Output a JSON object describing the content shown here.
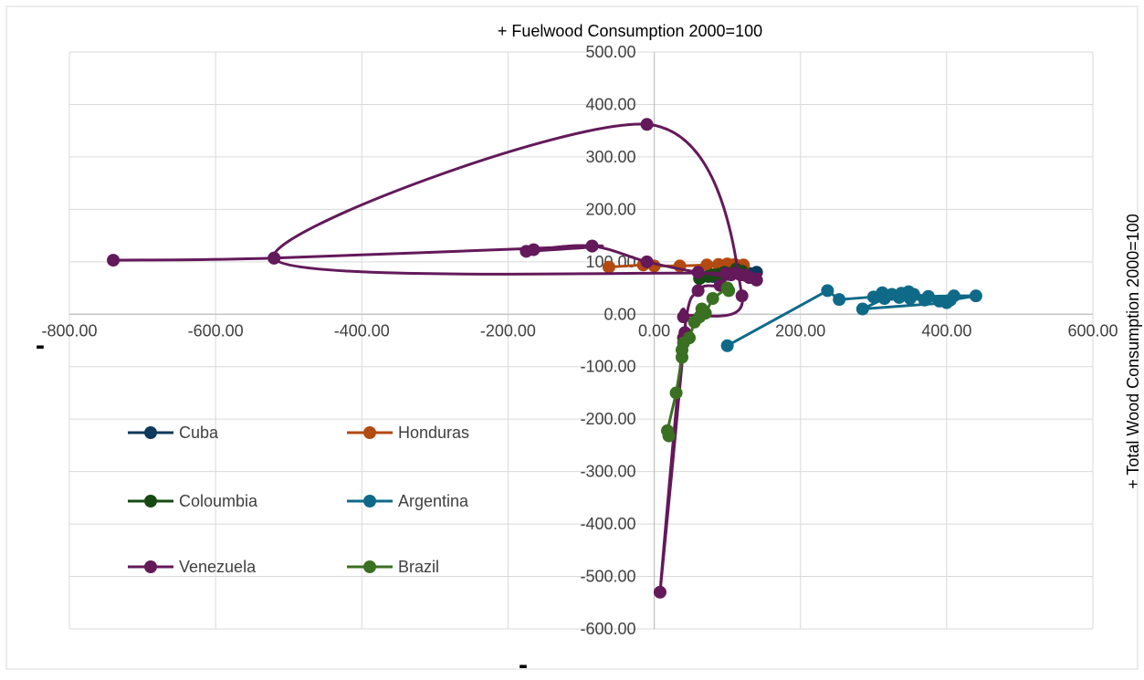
{
  "chart_data": {
    "type": "scatter",
    "title": "+ Fuelwood Consumption 2000=100",
    "xlabel": "-",
    "ylabel": "+ Total Wood Consumption 2000=100",
    "left_label": "-",
    "xlim": [
      -800,
      600
    ],
    "ylim": [
      -600,
      500
    ],
    "x_ticks": [
      "-800.00",
      "-600.00",
      "-400.00",
      "-200.00",
      "0.00",
      "200.00",
      "400.00",
      "600.00"
    ],
    "y_ticks": [
      "500.00",
      "400.00",
      "300.00",
      "200.00",
      "100.00",
      "0.00",
      "-100.00",
      "-200.00",
      "-300.00",
      "-400.00",
      "-500.00",
      "-600.00"
    ],
    "grid": true,
    "legend_position": "lower-left",
    "series": [
      {
        "name": "Cuba",
        "color": "#0e3a5b",
        "smooth": false,
        "points": [
          [
            64,
            70
          ],
          [
            80,
            74
          ],
          [
            95,
            76
          ],
          [
            108,
            80
          ],
          [
            120,
            82
          ],
          [
            140,
            80
          ],
          [
            130,
            78
          ],
          [
            100,
            76
          ],
          [
            80,
            72
          ]
        ]
      },
      {
        "name": "Honduras",
        "color": "#b34a11",
        "smooth": false,
        "points": [
          [
            -62,
            90
          ],
          [
            -15,
            94
          ],
          [
            0,
            92
          ],
          [
            35,
            92
          ],
          [
            72,
            94
          ],
          [
            88,
            95
          ],
          [
            100,
            96
          ],
          [
            110,
            95
          ],
          [
            122,
            94
          ],
          [
            115,
            92
          ],
          [
            96,
            90
          ]
        ]
      },
      {
        "name": "Coloumbia",
        "color": "#174a12",
        "smooth": false,
        "points": [
          [
            62,
            68
          ],
          [
            80,
            75
          ],
          [
            96,
            80
          ],
          [
            112,
            86
          ],
          [
            120,
            82
          ],
          [
            104,
            78
          ],
          [
            88,
            76
          ],
          [
            74,
            72
          ]
        ]
      },
      {
        "name": "Argentina",
        "color": "#0f6a88",
        "smooth": false,
        "points": [
          [
            100,
            -60
          ],
          [
            237,
            45
          ],
          [
            253,
            28
          ],
          [
            300,
            33
          ],
          [
            312,
            41
          ],
          [
            325,
            38
          ],
          [
            338,
            40
          ],
          [
            348,
            43
          ],
          [
            355,
            38
          ],
          [
            375,
            34
          ],
          [
            410,
            35
          ],
          [
            440,
            35
          ],
          [
            405,
            27
          ],
          [
            390,
            25
          ],
          [
            370,
            27
          ],
          [
            350,
            30
          ],
          [
            335,
            32
          ],
          [
            315,
            30
          ],
          [
            285,
            10
          ],
          [
            400,
            22
          ]
        ]
      },
      {
        "name": "Venezuela",
        "color": "#63195a",
        "smooth": true,
        "points": [
          [
            -740,
            103
          ],
          [
            -520,
            107
          ],
          [
            -85,
            130
          ],
          [
            -175,
            120
          ],
          [
            -165,
            123
          ],
          [
            -85,
            130
          ],
          [
            -10,
            100
          ],
          [
            60,
            80
          ],
          [
            140,
            65
          ],
          [
            130,
            70
          ],
          [
            125,
            74
          ],
          [
            118,
            75
          ],
          [
            108,
            78
          ],
          [
            98,
            78
          ],
          [
            -520,
            107
          ],
          [
            -10,
            362
          ],
          [
            120,
            35
          ],
          [
            40,
            -5
          ],
          [
            42,
            -35
          ],
          [
            8,
            -530
          ],
          [
            40,
            -45
          ],
          [
            60,
            45
          ],
          [
            90,
            55
          ],
          [
            105,
            75
          ],
          [
            130,
            70
          ]
        ]
      },
      {
        "name": "Brazil",
        "color": "#3a7021",
        "smooth": false,
        "points": [
          [
            20,
            -232
          ],
          [
            18,
            -222
          ],
          [
            30,
            -150
          ],
          [
            38,
            -82
          ],
          [
            38,
            -68
          ],
          [
            40,
            -55
          ],
          [
            48,
            -45
          ],
          [
            55,
            -15
          ],
          [
            62,
            -5
          ],
          [
            65,
            10
          ],
          [
            70,
            2
          ],
          [
            80,
            30
          ],
          [
            100,
            50
          ],
          [
            102,
            45
          ]
        ]
      }
    ]
  }
}
